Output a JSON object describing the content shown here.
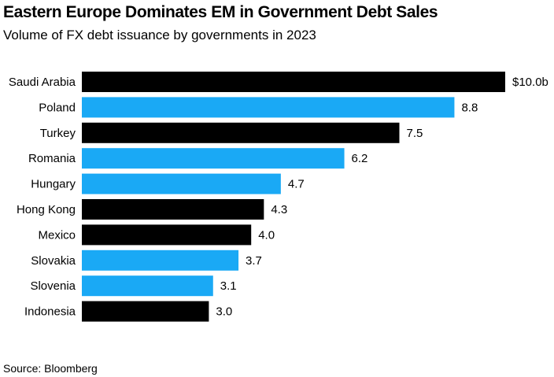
{
  "header": {
    "title": "Eastern Europe Dominates EM in Government Debt Sales",
    "subtitle": "Volume of FX debt issuance by governments in 2023"
  },
  "footer": {
    "source": "Source: Bloomberg"
  },
  "colors": {
    "dark_bar": "#000000",
    "blue_bar": "#1aa9f5"
  },
  "chart_data": {
    "type": "bar",
    "orientation": "horizontal",
    "title": "Eastern Europe Dominates EM in Government Debt Sales",
    "subtitle": "Volume of FX debt issuance by governments in 2023",
    "categories": [
      "Saudi Arabia",
      "Poland",
      "Turkey",
      "Romania",
      "Hungary",
      "Hong Kong",
      "Mexico",
      "Slovakia",
      "Slovenia",
      "Indonesia"
    ],
    "values": [
      10.0,
      8.8,
      7.5,
      6.2,
      4.7,
      4.3,
      4.0,
      3.7,
      3.1,
      3.0
    ],
    "value_labels": [
      "$10.0b",
      "8.8",
      "7.5",
      "6.2",
      "4.7",
      "4.3",
      "4.0",
      "3.7",
      "3.1",
      "3.0"
    ],
    "bar_colors": [
      "dark",
      "blue",
      "dark",
      "blue",
      "blue",
      "dark",
      "dark",
      "blue",
      "blue",
      "dark"
    ],
    "xlim": [
      0,
      10.0
    ],
    "grid": false,
    "legend": "none"
  }
}
